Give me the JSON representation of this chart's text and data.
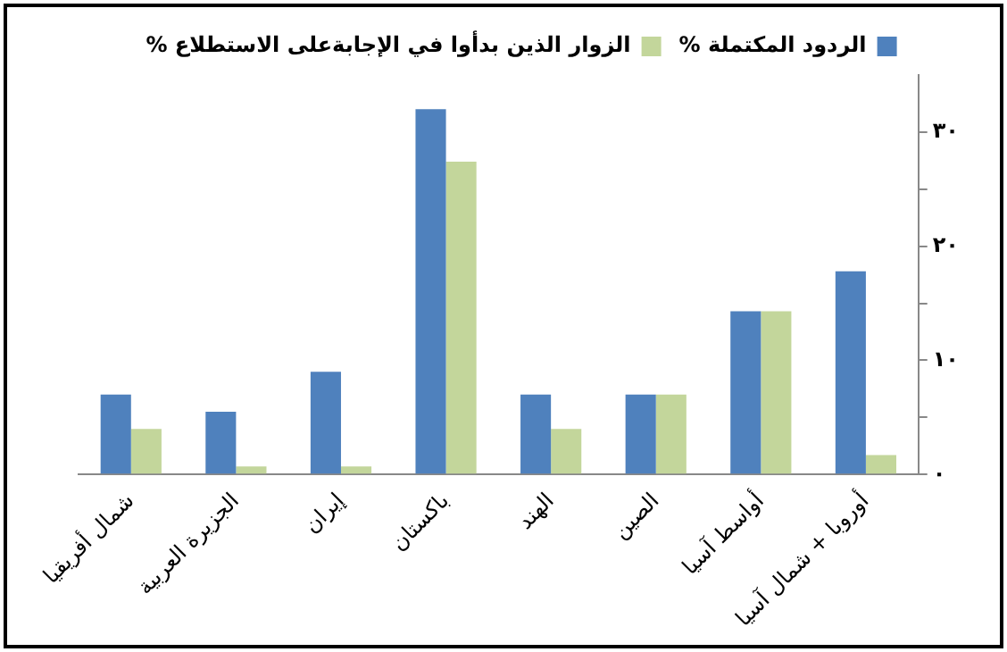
{
  "chart_data": {
    "type": "bar",
    "categories": [
      "شمال أفريقيا",
      "الجزيرة العربية",
      "إيران",
      "باكستان",
      "الهند",
      "الصين",
      "أواسط آسيا",
      "أوروبا + شمال آسيا"
    ],
    "series": [
      {
        "name": "% الردود المكتملة",
        "color": "#4f81bd",
        "values": [
          7,
          5.5,
          9,
          32,
          7,
          7,
          14.3,
          17.8
        ]
      },
      {
        "name": "% الزوار الذين بدأوا في الإجابةعلى الاستطلاع",
        "color": "#c3d69b",
        "values": [
          4,
          0.7,
          0.7,
          27.4,
          4,
          7,
          14.3,
          1.7
        ]
      }
    ],
    "ylim": [
      0,
      35
    ],
    "yticks": [
      {
        "value": 0,
        "label": "٠"
      },
      {
        "value": 5,
        "label": null
      },
      {
        "value": 10,
        "label": "١٠"
      },
      {
        "value": 15,
        "label": null
      },
      {
        "value": 20,
        "label": "٢٠"
      },
      {
        "value": 25,
        "label": null
      },
      {
        "value": 30,
        "label": "٣٠"
      }
    ],
    "grid": false,
    "legend": "top"
  }
}
